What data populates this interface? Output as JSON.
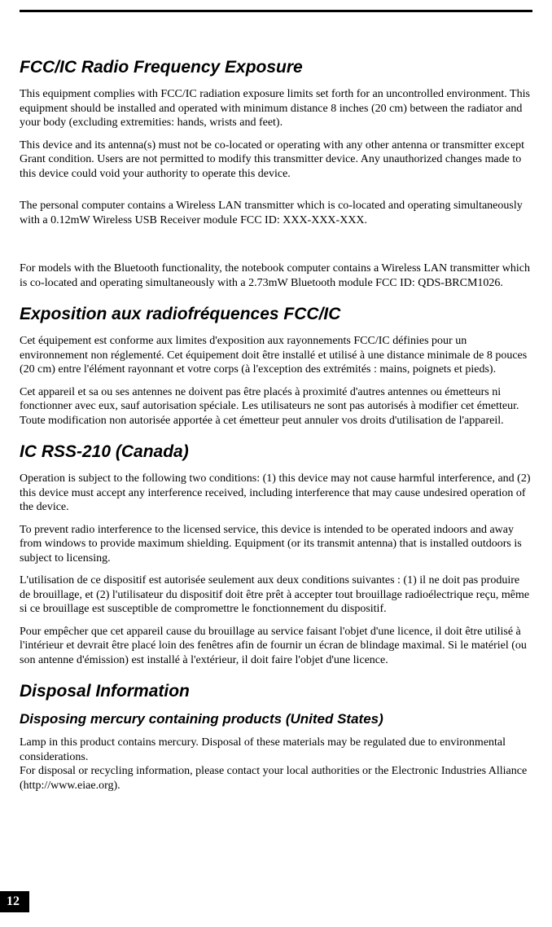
{
  "page": {
    "number": "12"
  },
  "sections": {
    "fcc": {
      "heading": "FCC/IC Radio Frequency Exposure",
      "p1": "This equipment complies with FCC/IC radiation exposure limits set forth for an uncontrolled environment. This equipment should be installed and operated with minimum distance 8 inches (20 cm) between the radiator and your body (excluding extremities: hands, wrists and feet).",
      "p2": "This device and its antenna(s) must not be co-located or operating with any other antenna or transmitter except Grant condition. Users are not permitted to modify this transmitter device. Any unauthorized changes made to this device could void your authority to operate this device.",
      "p3": "The personal computer contains a Wireless LAN transmitter which is co-located and operating simultaneously with a 0.12mW Wireless USB Receiver module FCC ID: XXX-XXX-XXX.",
      "p4": "For models with the Bluetooth functionality, the notebook computer contains a Wireless LAN transmitter which is co-located and operating simultaneously with a 2.73mW Bluetooth module FCC ID: QDS-BRCM1026."
    },
    "exposition": {
      "heading": "Exposition aux radiofréquences FCC/IC",
      "p1": "Cet équipement est conforme aux limites d'exposition aux rayonnements FCC/IC définies pour un environnement non réglementé. Cet équipement doit être installé et utilisé à une distance minimale de 8 pouces (20 cm) entre l'élément rayonnant et votre corps (à l'exception des extrémités : mains, poignets et pieds).",
      "p2": "Cet appareil et sa ou ses antennes ne doivent pas être placés à proximité d'autres antennes ou émetteurs ni fonctionner avec eux, sauf autorisation spéciale. Les utilisateurs ne sont pas autorisés à modifier cet émetteur. Toute modification non autorisée apportée à cet émetteur peut annuler vos droits d'utilisation de l'appareil."
    },
    "icrss": {
      "heading": "IC RSS-210 (Canada)",
      "p1": "Operation is subject to the following two conditions: (1) this device may not cause harmful interference, and (2) this device must accept any interference received, including interference that may cause undesired operation of the device.",
      "p2": "To prevent radio interference to the licensed service, this device is intended to be operated indoors and away from windows to provide maximum shielding. Equipment (or its transmit antenna) that is installed outdoors is subject to licensing.",
      "p3": "L'utilisation de ce dispositif est autorisée seulement aux deux conditions suivantes : (1) il ne doit pas produire de brouillage, et (2) l'utilisateur du dispositif doit être prêt à accepter tout brouillage radioélectrique reçu, même si ce brouillage est susceptible de compromettre le fonctionnement du dispositif.",
      "p4": "Pour empêcher que cet appareil cause du brouillage au service faisant l'objet d'une licence, il doit être utilisé à l'intérieur et devrait être placé loin des fenêtres afin de fournir un écran de blindage maximal. Si le matériel (ou son antenne d'émission) est installé à l'extérieur, il doit faire l'objet d'une licence."
    },
    "disposal": {
      "heading": "Disposal Information",
      "subheading": "Disposing mercury containing products (United States)",
      "p1": "Lamp in this product contains mercury. Disposal of these materials may be regulated due to environmental considerations.\nFor disposal or recycling information, please contact your local authorities or the Electronic Industries Alliance (http://www.eiae.org)."
    }
  }
}
